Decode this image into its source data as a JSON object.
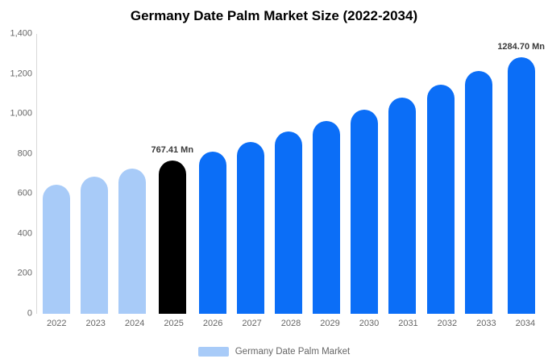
{
  "title": "Germany Date Palm Market Size (2022-2034)",
  "legend": {
    "label": "Germany Date Palm Market",
    "swatch_color": "#a8cbf8"
  },
  "chart_data": {
    "type": "bar",
    "title": "Germany Date Palm Market Size (2022-2034)",
    "xlabel": "",
    "ylabel": "",
    "ylim": [
      0,
      1400
    ],
    "grid": false,
    "legend_position": "bottom",
    "categories": [
      "2022",
      "2023",
      "2024",
      "2025",
      "2026",
      "2027",
      "2028",
      "2029",
      "2030",
      "2031",
      "2032",
      "2033",
      "2034"
    ],
    "values": [
      646.2,
      684.3,
      724.6,
      767.41,
      812.6,
      860.5,
      911.2,
      964.9,
      1021.8,
      1082.0,
      1145.8,
      1213.3,
      1284.7
    ],
    "bar_roles": [
      "past",
      "past",
      "past",
      "current",
      "future",
      "future",
      "future",
      "future",
      "future",
      "future",
      "future",
      "future",
      "future"
    ],
    "role_colors": {
      "past": "#a8cbf8",
      "current": "#000000",
      "future": "#0b6ef7"
    },
    "annotations": [
      {
        "index": 3,
        "text": "767.41 Mn"
      },
      {
        "index": 12,
        "text": "1284.70 Mn"
      }
    ],
    "yticks": [
      {
        "label": "0",
        "value": 0
      },
      {
        "label": "200",
        "value": 200
      },
      {
        "label": "400",
        "value": 400
      },
      {
        "label": "600",
        "value": 600
      },
      {
        "label": "800",
        "value": 800
      },
      {
        "label": "1,000",
        "value": 1000
      },
      {
        "label": "1,200",
        "value": 1200
      },
      {
        "label": "1,400",
        "value": 1400
      }
    ]
  }
}
